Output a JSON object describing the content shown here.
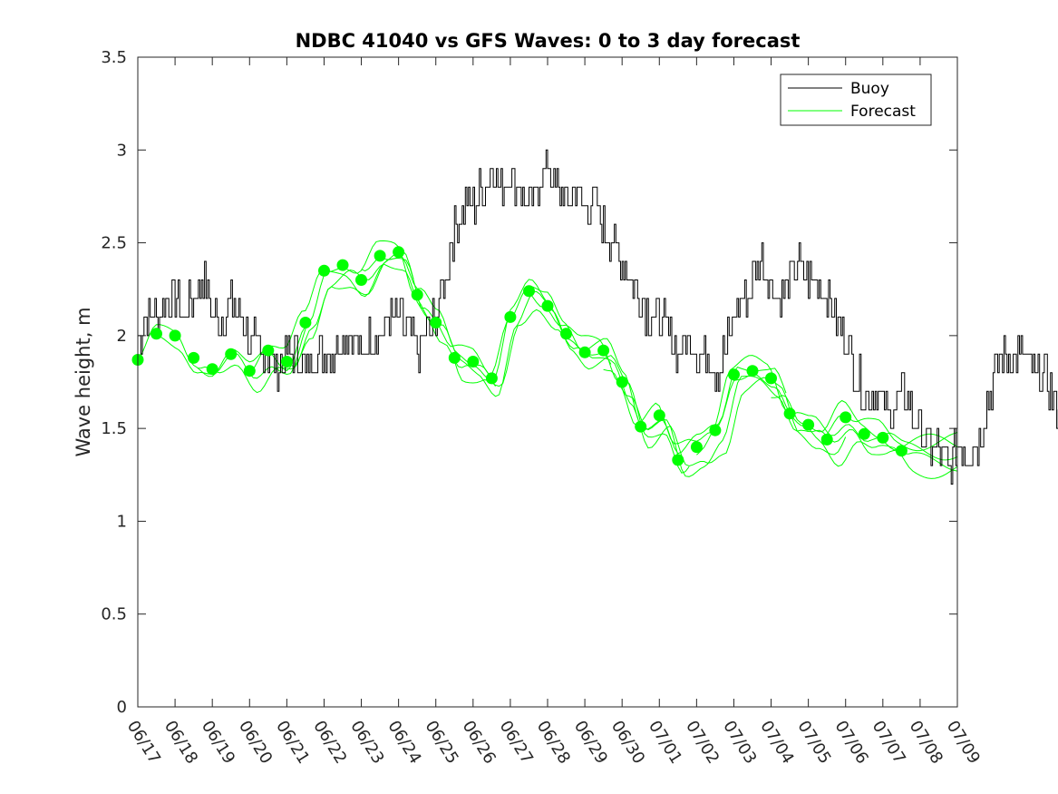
{
  "chart_data": {
    "type": "line",
    "title": "NDBC 41040 vs GFS Waves: 0 to 3 day forecast",
    "xlabel": "",
    "ylabel": "Wave height, m",
    "xlim": [
      "06/17",
      "07/09"
    ],
    "ylim": [
      0,
      3.5
    ],
    "y_ticks": [
      "0",
      "0.5",
      "1",
      "1.5",
      "2",
      "2.5",
      "3",
      "3.5"
    ],
    "x_ticks": [
      "06/17",
      "06/18",
      "06/19",
      "06/20",
      "06/21",
      "06/22",
      "06/23",
      "06/24",
      "06/25",
      "06/26",
      "06/27",
      "06/28",
      "06/29",
      "06/30",
      "07/01",
      "07/02",
      "07/03",
      "07/04",
      "07/05",
      "07/06",
      "07/07",
      "07/08",
      "07/09"
    ],
    "grid": false,
    "legend_position": "top-right",
    "legend": [
      "Buoy",
      "Forecast"
    ],
    "colors": {
      "buoy": "#000000",
      "forecast": "#00ff00",
      "axes": "#262626"
    },
    "series": [
      {
        "name": "Buoy",
        "x_start_date": "06/17",
        "step_days": 0.25,
        "values": [
          2.0,
          2.1,
          2.1,
          2.2,
          2.2,
          2.1,
          2.2,
          2.3,
          2.1,
          2.1,
          2.2,
          2.1,
          2.0,
          1.9,
          1.9,
          1.8,
          1.9,
          1.9,
          1.8,
          1.9,
          1.9,
          1.9,
          2.0,
          2.0,
          1.9,
          2.0,
          2.0,
          2.1,
          2.1,
          2.0,
          1.9,
          2.0,
          2.1,
          2.3,
          2.6,
          2.7,
          2.7,
          2.8,
          2.9,
          2.8,
          2.9,
          2.8,
          2.7,
          2.8,
          2.9,
          2.8,
          2.7,
          2.8,
          2.7,
          2.7,
          2.6,
          2.5,
          2.4,
          2.3,
          2.2,
          2.1,
          2.1,
          2.0,
          1.9,
          2.0,
          1.9,
          1.9,
          1.8,
          1.9,
          2.1,
          2.2,
          2.3,
          2.4,
          2.3,
          2.2,
          2.3,
          2.4,
          2.3,
          2.3,
          2.2,
          2.1,
          2.0,
          1.8,
          1.7,
          1.7,
          1.6,
          1.6,
          1.7,
          1.6,
          1.5,
          1.4,
          1.4,
          1.3,
          1.4,
          1.4,
          1.4,
          1.6,
          1.8,
          1.9,
          1.9,
          1.9,
          1.8,
          1.8,
          1.7,
          1.6,
          1.6,
          1.6,
          1.5,
          1.5,
          1.5,
          1.5,
          1.5,
          1.4,
          1.4,
          1.3,
          1.3,
          1.4,
          1.4,
          1.3,
          1.3,
          1.5,
          1.5,
          1.5,
          1.4,
          1.4,
          1.4,
          1.5,
          1.5,
          1.4,
          1.4,
          1.3,
          1.3,
          1.4,
          1.4,
          1.3,
          1.3,
          1.4,
          1.4,
          1.5,
          1.5,
          1.4,
          1.4,
          1.5,
          1.4,
          1.4
        ]
      },
      {
        "name": "Forecast",
        "points": [
          [
            "06/17",
            1.87
          ],
          [
            "06/17 12:00",
            2.01
          ],
          [
            "06/18",
            2.0
          ],
          [
            "06/18 12:00",
            1.88
          ],
          [
            "06/19",
            1.82
          ],
          [
            "06/19 12:00",
            1.9
          ],
          [
            "06/20",
            1.81
          ],
          [
            "06/20 12:00",
            1.92
          ],
          [
            "06/21",
            1.86
          ],
          [
            "06/21 12:00",
            2.07
          ],
          [
            "06/22",
            2.35
          ],
          [
            "06/22 12:00",
            2.38
          ],
          [
            "06/23",
            2.3
          ],
          [
            "06/23 12:00",
            2.43
          ],
          [
            "06/24",
            2.45
          ],
          [
            "06/24 12:00",
            2.22
          ],
          [
            "06/25",
            2.07
          ],
          [
            "06/25 12:00",
            1.88
          ],
          [
            "06/26",
            1.86
          ],
          [
            "06/26 12:00",
            1.77
          ],
          [
            "06/27",
            2.1
          ],
          [
            "06/27 12:00",
            2.24
          ],
          [
            "06/28",
            2.16
          ],
          [
            "06/28 12:00",
            2.01
          ],
          [
            "06/29",
            1.91
          ],
          [
            "06/29 12:00",
            1.92
          ],
          [
            "06/30",
            1.75
          ],
          [
            "06/30 12:00",
            1.51
          ],
          [
            "07/01",
            1.57
          ],
          [
            "07/01 12:00",
            1.33
          ],
          [
            "07/02",
            1.4
          ],
          [
            "07/02 12:00",
            1.49
          ],
          [
            "07/03",
            1.79
          ],
          [
            "07/03 12:00",
            1.81
          ],
          [
            "07/04",
            1.77
          ],
          [
            "07/04 12:00",
            1.58
          ],
          [
            "07/05",
            1.52
          ],
          [
            "07/05 12:00",
            1.44
          ],
          [
            "07/06",
            1.56
          ],
          [
            "07/06 12:00",
            1.47
          ],
          [
            "07/07",
            1.45
          ],
          [
            "07/07 12:00",
            1.38
          ]
        ]
      }
    ]
  }
}
